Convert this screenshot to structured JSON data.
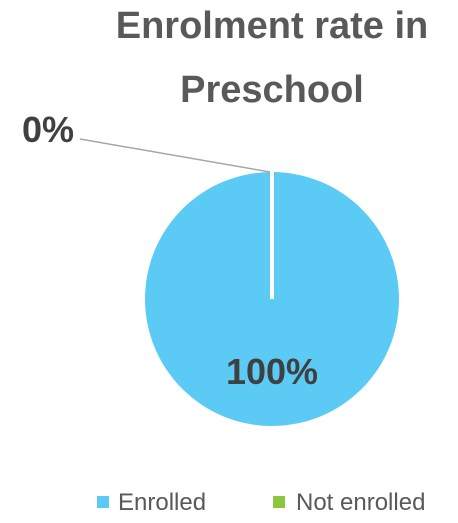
{
  "chart_data": {
    "type": "pie",
    "title": "Enrolment rate in Preschool",
    "title_lines": [
      "Enrolment rate in",
      "Preschool"
    ],
    "categories": [
      "Enrolled",
      "Not enrolled"
    ],
    "values": [
      100,
      0
    ],
    "data_labels": [
      "100%",
      "0%"
    ],
    "colors": [
      "#5BCBF5",
      "#8CC63F"
    ],
    "legend_position": "bottom"
  }
}
